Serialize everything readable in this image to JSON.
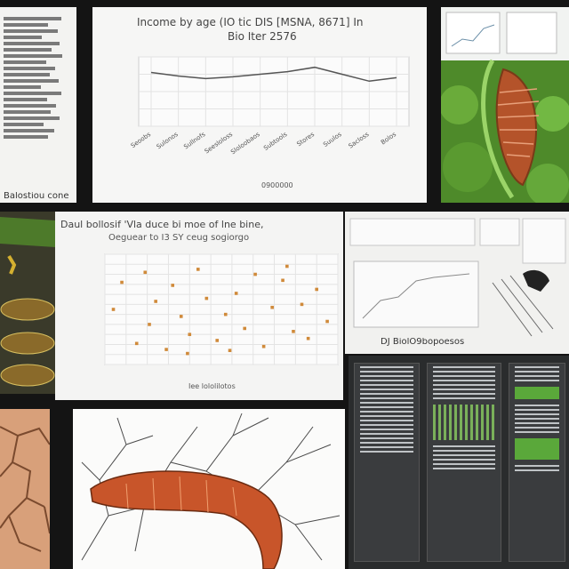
{
  "chart_top": {
    "title": "Income by age (IO tic DIS [MSNA, 8671] In",
    "subtitle": "Bio Iter 2576",
    "xlabel": "0900000"
  },
  "chart_scatter": {
    "title": "Daul bollosif 'Vla duce bi moe of lne bine,",
    "subtitle": "Oeguear to I3 SY ceug sogiorgo",
    "xlabel": "Iee lololilotos"
  },
  "notes_left": {
    "footer": "Balostiou cone"
  },
  "chart_right": {
    "footer": "DJ BiolO9bopoesos"
  },
  "chart_data": [
    {
      "type": "line",
      "title": "Income by age (IO tic DIS [MSNA, 8671] In",
      "x": [
        "Seoobs",
        "Sulonos",
        "Sullnofs",
        "Seesloloss",
        "Sloloobaos",
        "Subtools",
        "Stores",
        "Suulos",
        "Sacloss",
        "Bolos"
      ],
      "series": [
        {
          "values": [
            62,
            58,
            55,
            57,
            60,
            63,
            68,
            60,
            52,
            56
          ]
        }
      ],
      "ylim": [
        0,
        80
      ],
      "grid": true
    },
    {
      "type": "scatter",
      "title": "Daul bollosif 'Vla duce bi moe of lne bine,",
      "series": [
        {
          "x": [
            0.4,
            0.8,
            1.5,
            2.1,
            2.4,
            2.9,
            3.2,
            3.6,
            4.0,
            4.4,
            4.8,
            5.3,
            5.7,
            6.2,
            6.6,
            7.1,
            7.5,
            7.9,
            8.4,
            8.9,
            9.3,
            9.6,
            10.0,
            10.5,
            1.9,
            3.9,
            5.9,
            8.6
          ],
          "y": [
            5.5,
            8.2,
            2.1,
            4.0,
            6.3,
            1.5,
            7.9,
            4.8,
            3.0,
            9.5,
            6.6,
            2.4,
            5.0,
            7.1,
            3.6,
            9.0,
            1.8,
            5.7,
            8.4,
            3.3,
            6.0,
            2.6,
            7.5,
            4.3,
            9.2,
            1.1,
            1.4,
            9.8
          ]
        }
      ],
      "xlim": [
        0,
        11
      ],
      "ylim": [
        0,
        11
      ],
      "grid": true
    }
  ]
}
